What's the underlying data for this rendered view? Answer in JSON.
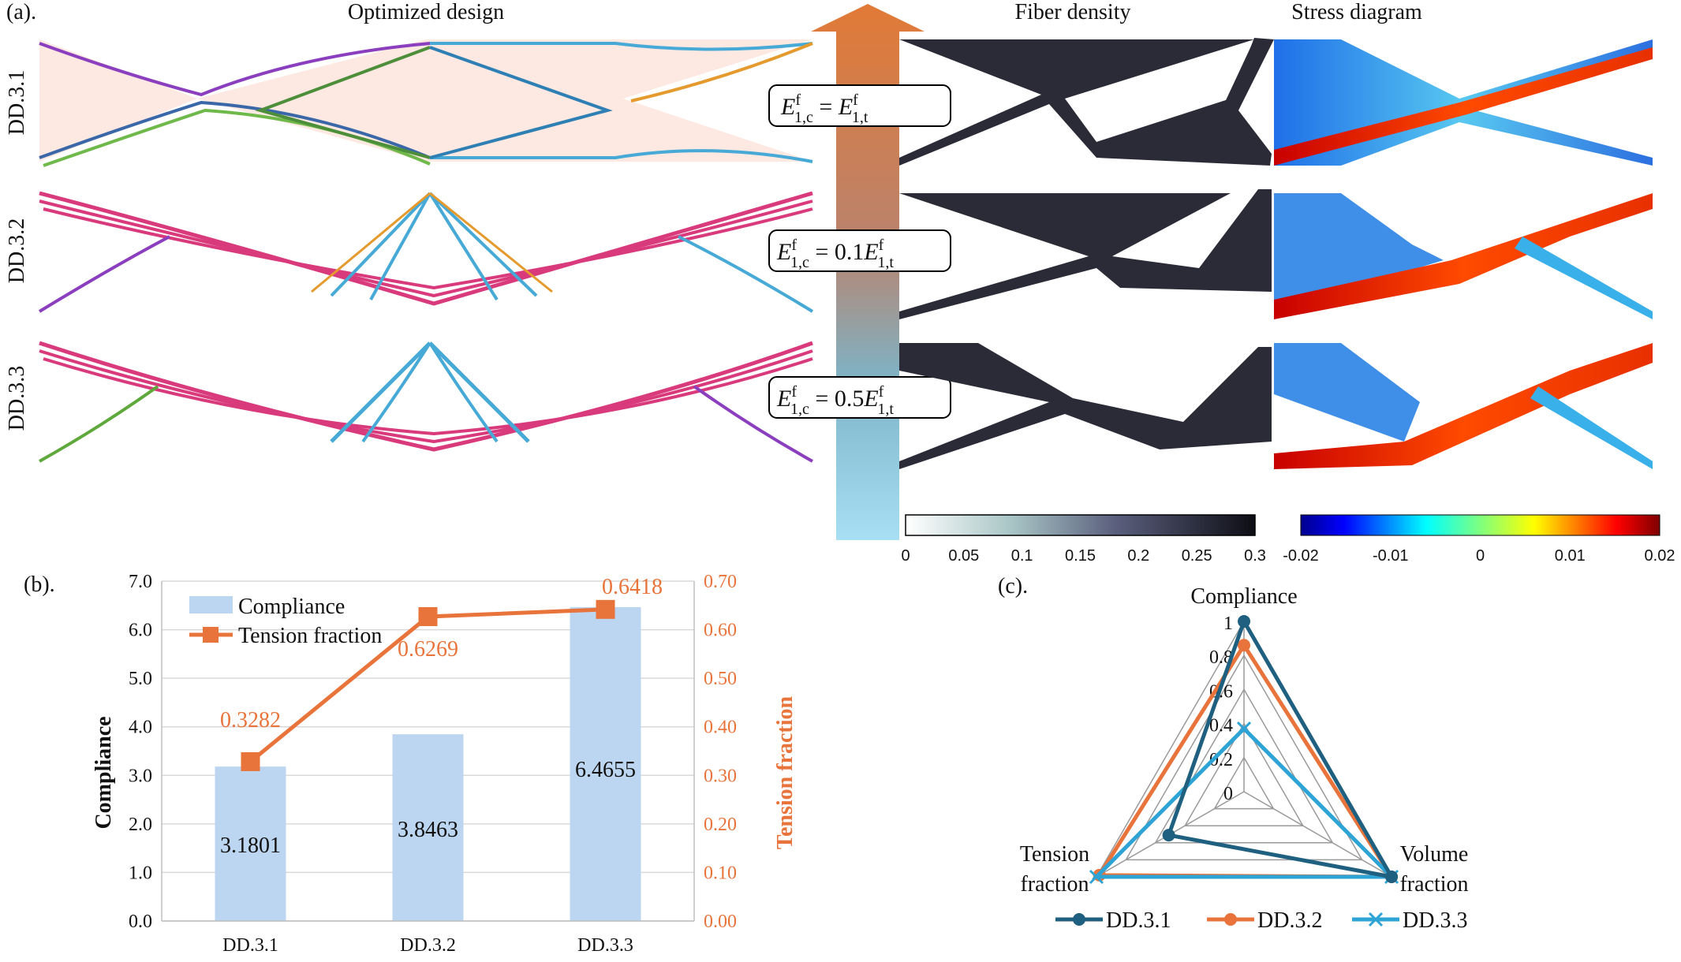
{
  "colors": {
    "dd31": "#1f5f7f",
    "dd32": "#e8743b",
    "dd33": "#2ea3d5",
    "bar": "#bcd5f0",
    "tension": "#e8743b",
    "grid": "#d9d9d9",
    "arrow_top": "#e27a36",
    "arrow_bottom": "#a8dff5"
  },
  "panel_a": {
    "label": "(a).",
    "col_optimized": "Optimized design",
    "col_density": "Fiber density",
    "col_stress": "Stress diagram",
    "rows": [
      "DD.3.1",
      "DD.3.2",
      "DD.3.3"
    ],
    "equations": [
      {
        "lhs": "E",
        "lhs_sup": "f",
        "lhs_sub": "1,c",
        "mid": " = ",
        "coef": "",
        "rhs": "E",
        "rhs_sup": "f",
        "rhs_sub": "1,t"
      },
      {
        "lhs": "E",
        "lhs_sup": "f",
        "lhs_sub": "1,c",
        "mid": " = ",
        "coef": "0.1",
        "rhs": "E",
        "rhs_sup": "f",
        "rhs_sub": "1,t"
      },
      {
        "lhs": "E",
        "lhs_sup": "f",
        "lhs_sub": "1,c",
        "mid": " = ",
        "coef": "0.5",
        "rhs": "E",
        "rhs_sup": "f",
        "rhs_sub": "1,t"
      }
    ],
    "density_colorbar": {
      "ticks": [
        "0",
        "0.05",
        "0.1",
        "0.15",
        "0.2",
        "0.25",
        "0.3"
      ]
    },
    "stress_colorbar": {
      "ticks": [
        "-0.02",
        "-0.01",
        "0",
        "0.01",
        "0.02"
      ]
    }
  },
  "chart_data": [
    {
      "type": "bar",
      "panel_label": "(b).",
      "categories": [
        "DD.3.1",
        "DD.3.2",
        "DD.3.3"
      ],
      "series": [
        {
          "name": "Compliance",
          "type": "bar",
          "axis": "left",
          "values": [
            3.1801,
            3.8463,
            6.4655
          ],
          "labels": [
            "3.1801",
            "3.8463",
            "6.4655"
          ]
        },
        {
          "name": "Tension fraction",
          "type": "line",
          "axis": "right",
          "values": [
            0.3282,
            0.6269,
            0.6418
          ],
          "labels": [
            "0.3282",
            "0.6269",
            "0.6418"
          ]
        }
      ],
      "ylabel": "Compliance",
      "y2label": "Tension fraction",
      "ylim": [
        0,
        7
      ],
      "y2lim": [
        0,
        0.7
      ],
      "yticks": [
        "0.0",
        "1.0",
        "2.0",
        "3.0",
        "4.0",
        "5.0",
        "6.0",
        "7.0"
      ],
      "y2ticks": [
        "0.00",
        "0.10",
        "0.20",
        "0.30",
        "0.40",
        "0.50",
        "0.60",
        "0.70"
      ],
      "legend_position": "top-left",
      "grid": true
    },
    {
      "type": "radar",
      "panel_label": "(c).",
      "axes": [
        "Compliance",
        "Volume fraction",
        "Tension fraction"
      ],
      "axis_labels": [
        [
          "Compliance"
        ],
        [
          "Volume",
          "fraction"
        ],
        [
          "Tension",
          "fraction"
        ]
      ],
      "rlim": [
        0,
        1
      ],
      "rticks": [
        "0",
        "0.2",
        "0.4",
        "0.6",
        "0.8",
        "1"
      ],
      "series": [
        {
          "name": "DD.3.1",
          "values": [
            1.0,
            1.0,
            0.51
          ],
          "marker": "circle"
        },
        {
          "name": "DD.3.2",
          "values": [
            0.86,
            1.0,
            0.98
          ],
          "marker": "circle"
        },
        {
          "name": "DD.3.3",
          "values": [
            0.37,
            1.0,
            1.0
          ],
          "marker": "x"
        }
      ],
      "legend_position": "bottom"
    }
  ]
}
